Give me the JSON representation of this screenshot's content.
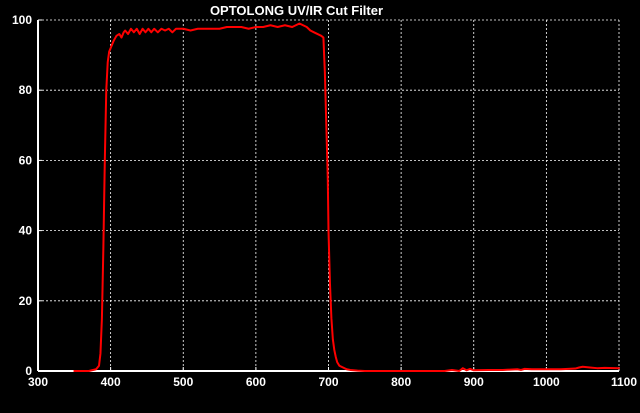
{
  "chart_data": {
    "type": "line",
    "title": "OPTOLONG UV/IR Cut Filter",
    "xlabel": "",
    "ylabel": "",
    "xlim": [
      300,
      1100
    ],
    "ylim": [
      0,
      100
    ],
    "x_ticks": [
      300,
      400,
      500,
      600,
      700,
      800,
      900,
      1000,
      1100
    ],
    "y_ticks": [
      0,
      20,
      40,
      60,
      80,
      100
    ],
    "grid": true,
    "legend": "none",
    "colors": {
      "background": "#000000",
      "plot_background": "#000000",
      "axis": "#ffffff",
      "grid": "#ffffff",
      "text": "#ffffff",
      "series": "#ff0000"
    },
    "series": [
      {
        "color": "#ff0000",
        "x": [
          350,
          370,
          380,
          384,
          386,
          388,
          390,
          392,
          394,
          396,
          398,
          400,
          404,
          408,
          412,
          415,
          418,
          420,
          424,
          428,
          432,
          436,
          440,
          444,
          448,
          452,
          456,
          460,
          465,
          470,
          475,
          480,
          485,
          490,
          495,
          500,
          510,
          520,
          530,
          540,
          550,
          560,
          570,
          580,
          590,
          600,
          610,
          620,
          630,
          640,
          650,
          660,
          665,
          670,
          675,
          680,
          685,
          690,
          693,
          695,
          697,
          699,
          700,
          702,
          704,
          706,
          708,
          710,
          712,
          715,
          720,
          725,
          730,
          740,
          750,
          760,
          780,
          800,
          820,
          840,
          860,
          870,
          880,
          885,
          890,
          895,
          900,
          920,
          940,
          960,
          965,
          970,
          980,
          1000,
          1020,
          1040,
          1045,
          1050,
          1060,
          1070,
          1080,
          1100
        ],
        "y": [
          0,
          0,
          0.5,
          1.5,
          5,
          15,
          35,
          60,
          80,
          88,
          91,
          92,
          94,
          95.5,
          96,
          95,
          96.5,
          97,
          96,
          97.5,
          96.5,
          97.5,
          96,
          97.5,
          96.5,
          97.5,
          96.5,
          97.5,
          96.5,
          97.5,
          97,
          97.5,
          96.5,
          97.5,
          97.5,
          97.5,
          97,
          97.5,
          97.5,
          97.5,
          97.5,
          98,
          98,
          98,
          97.5,
          98,
          98,
          98.5,
          98,
          98.5,
          98,
          99,
          98.5,
          98,
          97,
          96.5,
          96,
          95.5,
          95,
          85,
          70,
          55,
          40,
          25,
          15,
          9,
          6,
          4,
          2.5,
          1.5,
          1,
          0.5,
          0.3,
          0.1,
          0,
          0,
          0,
          0,
          0,
          0,
          0,
          0.3,
          0,
          0.8,
          0.2,
          0.6,
          0.2,
          0.3,
          0.3,
          0.5,
          0.3,
          0.6,
          0.5,
          0.5,
          0.5,
          0.7,
          1,
          1.2,
          1,
          0.8,
          0.9,
          0.8
        ]
      }
    ]
  }
}
